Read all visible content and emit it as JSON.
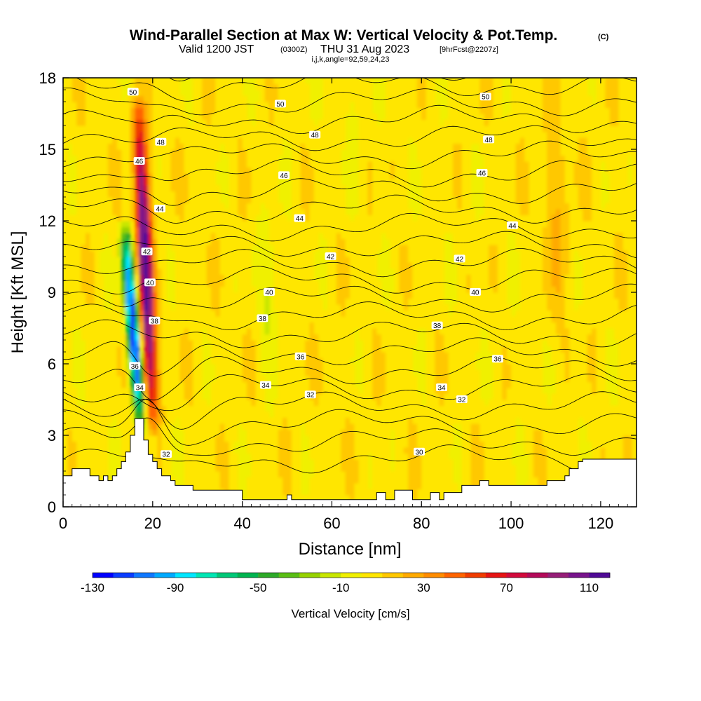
{
  "chart_data": {
    "type": "heatmap",
    "title": "Wind-Parallel Section at Max W: Vertical Velocity & Pot.Temp.",
    "title_mark": "(C)",
    "subtitle": {
      "valid": "Valid 1200 JST",
      "utc": "(0300Z)",
      "date": "THU 31 Aug 2023",
      "fcst": "[9hrFcst@2207z]"
    },
    "indices": "i,j,k,angle=92,59,24,23",
    "xlabel": "Distance [nm]",
    "ylabel": "Height [Kft MSL]",
    "xlim": [
      0,
      128
    ],
    "ylim": [
      0,
      18
    ],
    "x_ticks": [
      0,
      20,
      40,
      60,
      80,
      100,
      120
    ],
    "y_ticks": [
      0,
      3,
      6,
      9,
      12,
      15,
      18
    ],
    "colorbar": {
      "label": "Vertical Velocity [cm/s]",
      "min": -130,
      "max": 120,
      "step": 10,
      "tick_labels": [
        -130,
        -90,
        -50,
        -10,
        30,
        70,
        110
      ],
      "colors": [
        "#0000ff",
        "#0a3cff",
        "#0f78ff",
        "#00aaff",
        "#00e6ff",
        "#00e6b4",
        "#00c878",
        "#00b450",
        "#2daa28",
        "#5abe14",
        "#96d200",
        "#c8e600",
        "#f0f000",
        "#ffe600",
        "#ffc800",
        "#ffaa00",
        "#ff8c00",
        "#ff6400",
        "#f03c00",
        "#e61414",
        "#d20a3c",
        "#b40a5a",
        "#961e78",
        "#78148c",
        "#500a96"
      ]
    },
    "terrain_kft": [
      [
        0,
        1.3
      ],
      [
        2,
        1.3
      ],
      [
        2,
        1.6
      ],
      [
        6,
        1.6
      ],
      [
        6,
        1.3
      ],
      [
        8,
        1.3
      ],
      [
        8,
        1.1
      ],
      [
        9,
        1.1
      ],
      [
        9,
        1.3
      ],
      [
        10,
        1.3
      ],
      [
        10,
        1.1
      ],
      [
        11,
        1.1
      ],
      [
        11,
        1.3
      ],
      [
        12,
        1.3
      ],
      [
        12,
        1.6
      ],
      [
        13,
        1.6
      ],
      [
        13,
        1.9
      ],
      [
        14,
        1.9
      ],
      [
        14,
        2.3
      ],
      [
        15,
        2.3
      ],
      [
        15,
        3.0
      ],
      [
        16,
        3.0
      ],
      [
        16,
        3.7
      ],
      [
        18,
        3.7
      ],
      [
        18,
        2.8
      ],
      [
        19,
        2.8
      ],
      [
        19,
        2.2
      ],
      [
        20,
        2.2
      ],
      [
        20,
        1.9
      ],
      [
        21,
        1.9
      ],
      [
        21,
        1.6
      ],
      [
        22,
        1.6
      ],
      [
        22,
        1.3
      ],
      [
        24,
        1.3
      ],
      [
        24,
        1.1
      ],
      [
        25,
        1.1
      ],
      [
        25,
        0.9
      ],
      [
        29,
        0.9
      ],
      [
        29,
        0.7
      ],
      [
        40,
        0.7
      ],
      [
        40,
        0.3
      ],
      [
        50,
        0.3
      ],
      [
        50,
        0.5
      ],
      [
        51,
        0.5
      ],
      [
        51,
        0.3
      ],
      [
        70,
        0.3
      ],
      [
        70,
        0.6
      ],
      [
        72,
        0.6
      ],
      [
        72,
        0.3
      ],
      [
        74,
        0.3
      ],
      [
        74,
        0.7
      ],
      [
        78,
        0.7
      ],
      [
        78,
        0.3
      ],
      [
        82,
        0.3
      ],
      [
        82,
        0.6
      ],
      [
        84,
        0.6
      ],
      [
        84,
        0.3
      ],
      [
        85,
        0.3
      ],
      [
        85,
        0.6
      ],
      [
        89,
        0.6
      ],
      [
        89,
        0.9
      ],
      [
        93,
        0.9
      ],
      [
        93,
        1.1
      ],
      [
        95,
        1.1
      ],
      [
        95,
        0.9
      ],
      [
        108,
        0.9
      ],
      [
        108,
        1.1
      ],
      [
        112,
        1.1
      ],
      [
        112,
        1.3
      ],
      [
        113,
        1.3
      ],
      [
        113,
        1.6
      ],
      [
        115,
        1.6
      ],
      [
        115,
        1.9
      ],
      [
        116,
        1.9
      ],
      [
        116,
        2.0
      ],
      [
        128,
        2.0
      ]
    ],
    "updraft_bands": [
      {
        "x_base": 20,
        "x_top": 16.5,
        "y_base": 3.0,
        "y_top": 18,
        "w": 1.6,
        "amp": 115
      },
      {
        "x_base": 17.5,
        "x_top": 13.5,
        "y_base": 3.0,
        "y_top": 12.5,
        "w": 1.4,
        "amp": -125
      }
    ],
    "theta_labels": [
      {
        "v": "50",
        "x": 15.6,
        "y": 17.4
      },
      {
        "v": "50",
        "x": 48.5,
        "y": 16.9
      },
      {
        "v": "50",
        "x": 94.3,
        "y": 17.2
      },
      {
        "v": "48",
        "x": 21.8,
        "y": 15.3
      },
      {
        "v": "48",
        "x": 56.2,
        "y": 15.6
      },
      {
        "v": "48",
        "x": 95.0,
        "y": 15.4
      },
      {
        "v": "46",
        "x": 17.0,
        "y": 14.5
      },
      {
        "v": "46",
        "x": 49.3,
        "y": 13.9
      },
      {
        "v": "46",
        "x": 93.5,
        "y": 14.0
      },
      {
        "v": "44",
        "x": 21.6,
        "y": 12.5
      },
      {
        "v": "44",
        "x": 52.8,
        "y": 12.1
      },
      {
        "v": "44",
        "x": 100.3,
        "y": 11.8
      },
      {
        "v": "42",
        "x": 18.7,
        "y": 10.7
      },
      {
        "v": "42",
        "x": 59.7,
        "y": 10.5
      },
      {
        "v": "42",
        "x": 88.5,
        "y": 10.4
      },
      {
        "v": "40",
        "x": 19.4,
        "y": 9.4
      },
      {
        "v": "40",
        "x": 46.0,
        "y": 9.0
      },
      {
        "v": "40",
        "x": 92.0,
        "y": 9.0
      },
      {
        "v": "38",
        "x": 20.4,
        "y": 7.8
      },
      {
        "v": "38",
        "x": 44.5,
        "y": 7.9
      },
      {
        "v": "38",
        "x": 83.5,
        "y": 7.6
      },
      {
        "v": "36",
        "x": 16.0,
        "y": 5.9
      },
      {
        "v": "36",
        "x": 53.0,
        "y": 6.3
      },
      {
        "v": "36",
        "x": 97.0,
        "y": 6.2
      },
      {
        "v": "34",
        "x": 17.1,
        "y": 5.0
      },
      {
        "v": "34",
        "x": 45.2,
        "y": 5.1
      },
      {
        "v": "34",
        "x": 84.5,
        "y": 5.0
      },
      {
        "v": "32",
        "x": 23.0,
        "y": 2.2
      },
      {
        "v": "32",
        "x": 55.2,
        "y": 4.7
      },
      {
        "v": "32",
        "x": 89.0,
        "y": 4.5
      },
      {
        "v": "30",
        "x": 79.5,
        "y": 2.3
      }
    ]
  }
}
